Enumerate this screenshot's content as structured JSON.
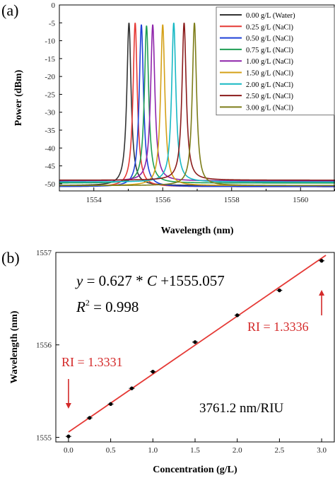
{
  "chart_data": [
    {
      "type": "line",
      "panel_label": "(a)",
      "xlabel": "Wavelength (nm)",
      "ylabel": "Power (dBm)",
      "xlim": [
        1553.0,
        1561.0
      ],
      "ylim": [
        -52,
        0
      ],
      "xticks": [
        1554,
        1556,
        1558,
        1560
      ],
      "yticks": [
        0,
        -5,
        -10,
        -15,
        -20,
        -25,
        -30,
        -35,
        -40,
        -45,
        -50
      ],
      "grid": false,
      "legend_position": "top-right",
      "series": [
        {
          "name": "0.00 g/L (Water)",
          "color": "#333333",
          "peak_wavelength": 1555.02,
          "peak_power": -5.0,
          "baseline": -50.5,
          "width": 0.5
        },
        {
          "name": "0.25 g/L (NaCl)",
          "color": "#e53935",
          "peak_wavelength": 1555.2,
          "peak_power": -5.0,
          "baseline": -50.8,
          "width": 0.5
        },
        {
          "name": "0.50 g/L (NaCl)",
          "color": "#1e40d8",
          "peak_wavelength": 1555.38,
          "peak_power": -5.5,
          "baseline": -50.8,
          "width": 0.5
        },
        {
          "name": "0.75 g/L (NaCl)",
          "color": "#1f9e55",
          "peak_wavelength": 1555.53,
          "peak_power": -5.8,
          "baseline": -49.8,
          "width": 0.5
        },
        {
          "name": "1.00 g/L (NaCl)",
          "color": "#8e24aa",
          "peak_wavelength": 1555.71,
          "peak_power": -5.5,
          "baseline": -49.2,
          "width": 0.5
        },
        {
          "name": "1.50 g/L (NaCl)",
          "color": "#d4a017",
          "peak_wavelength": 1556.0,
          "peak_power": -5.5,
          "baseline": -50.5,
          "width": 0.5
        },
        {
          "name": "2.00 g/L (NaCl)",
          "color": "#17b8c4",
          "peak_wavelength": 1556.32,
          "peak_power": -5.0,
          "baseline": -49.5,
          "width": 0.5
        },
        {
          "name": "2.50 g/L (NaCl)",
          "color": "#8b1c1c",
          "peak_wavelength": 1556.62,
          "peak_power": -5.0,
          "baseline": -49.0,
          "width": 0.5
        },
        {
          "name": "3.00 g/L (NaCl)",
          "color": "#7d7d1a",
          "peak_wavelength": 1556.92,
          "peak_power": -5.0,
          "baseline": -50.5,
          "width": 0.5
        }
      ]
    },
    {
      "type": "scatter",
      "panel_label": "(b)",
      "xlabel": "Concentration (g/L)",
      "ylabel": "Wavelength (nm)",
      "xlim": [
        -0.15,
        3.15
      ],
      "ylim": [
        1554.95,
        1557.0
      ],
      "xticks": [
        0.0,
        0.5,
        1.0,
        1.5,
        2.0,
        2.5,
        3.0
      ],
      "xtick_labels": [
        "0.0",
        "0.5",
        "1.0",
        "1.5",
        "2.0",
        "2.5",
        "3.0"
      ],
      "yticks": [
        1555,
        1556,
        1557
      ],
      "grid": false,
      "series": [
        {
          "x": [
            0.0,
            0.25,
            0.5,
            0.75,
            1.0,
            1.5,
            2.0,
            2.5,
            3.0
          ],
          "y": [
            1555.01,
            1555.21,
            1555.36,
            1555.53,
            1555.71,
            1556.03,
            1556.32,
            1556.59,
            1556.91
          ],
          "error": [
            0.02,
            0.02,
            0.02,
            0.02,
            0.02,
            0.02,
            0.02,
            0.02,
            0.02
          ],
          "marker_color": "#000000"
        }
      ],
      "fit": {
        "slope": 0.627,
        "intercept": 1555.057,
        "color": "#e53935"
      },
      "annotations": {
        "equation_y": "y",
        "equation_eq": " = 0.627 * ",
        "equation_c": "C",
        "equation_rest": " +1555.057",
        "r2_label": "R",
        "r2_sup": "2",
        "r2_rest": " = 0.998",
        "sensitivity": "3761.2 nm/RIU",
        "ri_low": "RI = 1.3331",
        "ri_high": "RI = 1.3336",
        "arrow_color": "#d42a2a"
      }
    }
  ]
}
